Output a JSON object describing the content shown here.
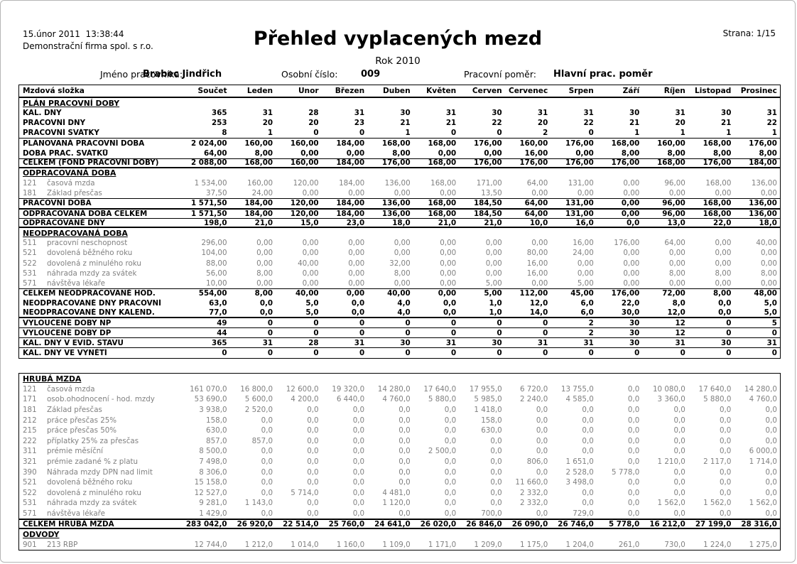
{
  "page": {
    "generated_at": "15.únor 2011  13:38:44",
    "company": "Demonstrační firma spol. s r.o.",
    "title": "Přehled vyplacených mezd",
    "subtitle": "Rok 2010",
    "page_label": "Strana: 1/15"
  },
  "employee": {
    "name_label": "Jméno pracovníka:",
    "name": "Brabec Jindřich",
    "number_label": "Osobní číslo:",
    "number": "009",
    "relation_label": "Pracovní poměr:",
    "relation": "Hlavní prac. poměr"
  },
  "table": {
    "first_col_header": "Mzdová složka",
    "columns": [
      "Součet",
      "Leden",
      "Únor",
      "Březen",
      "Duben",
      "Květen",
      "Červen",
      "Červenec",
      "Srpen",
      "Září",
      "Říjen",
      "Listopad",
      "Prosinec"
    ],
    "boxes": [
      {
        "has_column_header": true,
        "rows": [
          {
            "k": "section",
            "label": "PLÁN PRACOVNÍ DOBY"
          },
          {
            "k": "total",
            "label": "KAL. DNY",
            "v": [
              "365",
              "31",
              "28",
              "31",
              "30",
              "31",
              "30",
              "31",
              "31",
              "30",
              "31",
              "30",
              "31"
            ]
          },
          {
            "k": "total",
            "label": "PRACOVNÍ DNY",
            "v": [
              "253",
              "20",
              "20",
              "23",
              "21",
              "21",
              "22",
              "20",
              "22",
              "21",
              "20",
              "21",
              "22"
            ]
          },
          {
            "k": "total",
            "label": "PRACOVNÍ SVÁTKY",
            "v": [
              "8",
              "1",
              "0",
              "0",
              "1",
              "0",
              "0",
              "2",
              "0",
              "1",
              "1",
              "1",
              "1"
            ]
          },
          {
            "k": "total",
            "label": "PLÁNOVANÁ PRACOVNÍ DOBA",
            "r": "t1",
            "v": [
              "2 024,00",
              "160,00",
              "160,00",
              "184,00",
              "168,00",
              "168,00",
              "176,00",
              "160,00",
              "176,00",
              "168,00",
              "160,00",
              "168,00",
              "176,00"
            ]
          },
          {
            "k": "total",
            "label": "DOBA PRAC. SVÁTKŮ",
            "v": [
              "64,00",
              "8,00",
              "0,00",
              "0,00",
              "8,00",
              "0,00",
              "0,00",
              "16,00",
              "0,00",
              "8,00",
              "8,00",
              "8,00",
              "8,00"
            ]
          },
          {
            "k": "total",
            "label": "CELKEM (FOND PRACOVNÍ DOBY)",
            "r": "t1 b2",
            "v": [
              "2 088,00",
              "168,00",
              "160,00",
              "184,00",
              "176,00",
              "168,00",
              "176,00",
              "176,00",
              "176,00",
              "176,00",
              "168,00",
              "176,00",
              "184,00"
            ]
          },
          {
            "k": "section",
            "label": "ODPRACOVANÁ DOBA"
          },
          {
            "k": "item",
            "code": "121",
            "label": "časová mzda",
            "v": [
              "1 534,00",
              "160,00",
              "120,00",
              "184,00",
              "136,00",
              "168,00",
              "171,00",
              "64,00",
              "131,00",
              "0,00",
              "96,00",
              "168,00",
              "136,00"
            ]
          },
          {
            "k": "item",
            "code": "181",
            "label": "Základ přesčas",
            "v": [
              "37,50",
              "24,00",
              "0,00",
              "0,00",
              "0,00",
              "0,00",
              "13,50",
              "0,00",
              "0,00",
              "0,00",
              "0,00",
              "0,00",
              "0,00"
            ]
          },
          {
            "k": "total",
            "label": "PRACOVNÍ DOBA",
            "r": "t1",
            "v": [
              "1 571,50",
              "184,00",
              "120,00",
              "184,00",
              "136,00",
              "168,00",
              "184,50",
              "64,00",
              "131,00",
              "0,00",
              "96,00",
              "168,00",
              "136,00"
            ]
          },
          {
            "k": "total",
            "label": "ODPRACOVANÁ DOBA CELKEM",
            "r": "t2",
            "v": [
              "1 571,50",
              "184,00",
              "120,00",
              "184,00",
              "136,00",
              "168,00",
              "184,50",
              "64,00",
              "131,00",
              "0,00",
              "96,00",
              "168,00",
              "136,00"
            ]
          },
          {
            "k": "total",
            "label": "ODPRACOVANÉ DNY",
            "r": "t1 b2",
            "v": [
              "198,0",
              "21,0",
              "15,0",
              "23,0",
              "18,0",
              "21,0",
              "21,0",
              "10,0",
              "16,0",
              "0,0",
              "13,0",
              "22,0",
              "18,0"
            ]
          },
          {
            "k": "section",
            "label": "NEODPRACOVANÁ DOBA"
          },
          {
            "k": "item",
            "code": "511",
            "label": "pracovní neschopnost",
            "v": [
              "296,00",
              "0,00",
              "0,00",
              "0,00",
              "0,00",
              "0,00",
              "0,00",
              "0,00",
              "16,00",
              "176,00",
              "64,00",
              "0,00",
              "40,00"
            ]
          },
          {
            "k": "item",
            "code": "521",
            "label": "dovolená běžného roku",
            "v": [
              "104,00",
              "0,00",
              "0,00",
              "0,00",
              "0,00",
              "0,00",
              "0,00",
              "80,00",
              "24,00",
              "0,00",
              "0,00",
              "0,00",
              "0,00"
            ]
          },
          {
            "k": "item",
            "code": "522",
            "label": "dovolená z minulého roku",
            "v": [
              "88,00",
              "0,00",
              "40,00",
              "0,00",
              "32,00",
              "0,00",
              "0,00",
              "16,00",
              "0,00",
              "0,00",
              "0,00",
              "0,00",
              "0,00"
            ]
          },
          {
            "k": "item",
            "code": "531",
            "label": "náhrada mzdy za svátek",
            "v": [
              "56,00",
              "8,00",
              "0,00",
              "0,00",
              "8,00",
              "0,00",
              "0,00",
              "16,00",
              "0,00",
              "0,00",
              "8,00",
              "8,00",
              "8,00"
            ]
          },
          {
            "k": "item",
            "code": "571",
            "label": "návštěva lékaře",
            "v": [
              "10,00",
              "0,00",
              "0,00",
              "0,00",
              "0,00",
              "0,00",
              "5,00",
              "0,00",
              "5,00",
              "0,00",
              "0,00",
              "0,00",
              "0,00"
            ]
          },
          {
            "k": "total",
            "label": "CELKEM NEODPRACOVANÉ HOD.",
            "r": "t1",
            "v": [
              "554,00",
              "8,00",
              "40,00",
              "0,00",
              "40,00",
              "0,00",
              "5,00",
              "112,00",
              "45,00",
              "176,00",
              "72,00",
              "8,00",
              "48,00"
            ]
          },
          {
            "k": "total",
            "label": "NEODPRACOVANÉ DNY PRACOVNÍ",
            "v": [
              "63,0",
              "0,0",
              "5,0",
              "0,0",
              "4,0",
              "0,0",
              "1,0",
              "12,0",
              "6,0",
              "22,0",
              "8,0",
              "0,0",
              "5,0"
            ]
          },
          {
            "k": "total",
            "label": "NEODPRACOVANÉ DNY KALEND.",
            "r": "b2",
            "v": [
              "77,0",
              "0,0",
              "5,0",
              "0,0",
              "4,0",
              "0,0",
              "1,0",
              "14,0",
              "6,0",
              "30,0",
              "12,0",
              "0,0",
              "5,0"
            ]
          },
          {
            "k": "total",
            "label": "VYLOUČENÉ DOBY NP",
            "r": "b1",
            "v": [
              "49",
              "0",
              "0",
              "0",
              "0",
              "0",
              "0",
              "0",
              "2",
              "30",
              "12",
              "0",
              "5"
            ]
          },
          {
            "k": "total",
            "label": "VYLOUČENÉ DOBY DP",
            "r": "b1",
            "v": [
              "44",
              "0",
              "0",
              "0",
              "0",
              "0",
              "0",
              "0",
              "2",
              "30",
              "12",
              "0",
              "0"
            ]
          },
          {
            "k": "total",
            "label": "KAL. DNY V EVID. STAVU",
            "r": "b1",
            "v": [
              "365",
              "31",
              "28",
              "31",
              "30",
              "31",
              "30",
              "31",
              "31",
              "30",
              "31",
              "30",
              "31"
            ]
          },
          {
            "k": "total",
            "label": "KAL. DNY VE VYNĚTÍ",
            "v": [
              "0",
              "0",
              "0",
              "0",
              "0",
              "0",
              "0",
              "0",
              "0",
              "0",
              "0",
              "0",
              "0"
            ]
          }
        ]
      },
      {
        "has_column_header": false,
        "rows": [
          {
            "k": "section",
            "label": "HRUBÁ MZDA"
          },
          {
            "k": "item",
            "code": "121",
            "label": "časová mzda",
            "v": [
              "161 070,0",
              "16 800,0",
              "12 600,0",
              "19 320,0",
              "14 280,0",
              "17 640,0",
              "17 955,0",
              "6 720,0",
              "13 755,0",
              "0,0",
              "10 080,0",
              "17 640,0",
              "14 280,0"
            ]
          },
          {
            "k": "item",
            "code": "171",
            "label": "osob.ohodnocení - hod. mzdy",
            "v": [
              "53 690,0",
              "5 600,0",
              "4 200,0",
              "6 440,0",
              "4 760,0",
              "5 880,0",
              "5 985,0",
              "2 240,0",
              "4 585,0",
              "0,0",
              "3 360,0",
              "5 880,0",
              "4 760,0"
            ]
          },
          {
            "k": "item",
            "code": "181",
            "label": "Základ přesčas",
            "v": [
              "3 938,0",
              "2 520,0",
              "0,0",
              "0,0",
              "0,0",
              "0,0",
              "1 418,0",
              "0,0",
              "0,0",
              "0,0",
              "0,0",
              "0,0",
              "0,0"
            ]
          },
          {
            "k": "item",
            "code": "212",
            "label": "práce přesčas 25%",
            "v": [
              "158,0",
              "0,0",
              "0,0",
              "0,0",
              "0,0",
              "0,0",
              "158,0",
              "0,0",
              "0,0",
              "0,0",
              "0,0",
              "0,0",
              "0,0"
            ]
          },
          {
            "k": "item",
            "code": "215",
            "label": "práce přesčas 50%",
            "v": [
              "630,0",
              "0,0",
              "0,0",
              "0,0",
              "0,0",
              "0,0",
              "630,0",
              "0,0",
              "0,0",
              "0,0",
              "0,0",
              "0,0",
              "0,0"
            ]
          },
          {
            "k": "item",
            "code": "222",
            "label": "příplatky 25% za přesčas",
            "v": [
              "857,0",
              "857,0",
              "0,0",
              "0,0",
              "0,0",
              "0,0",
              "0,0",
              "0,0",
              "0,0",
              "0,0",
              "0,0",
              "0,0",
              "0,0"
            ]
          },
          {
            "k": "item",
            "code": "311",
            "label": "prémie měsíční",
            "v": [
              "8 500,0",
              "0,0",
              "0,0",
              "0,0",
              "0,0",
              "2 500,0",
              "0,0",
              "0,0",
              "0,0",
              "0,0",
              "0,0",
              "0,0",
              "6 000,0"
            ]
          },
          {
            "k": "item",
            "code": "321",
            "label": "prémie zadané % z platu",
            "v": [
              "7 498,0",
              "0,0",
              "0,0",
              "0,0",
              "0,0",
              "0,0",
              "0,0",
              "806,0",
              "1 651,0",
              "0,0",
              "1 210,0",
              "2 117,0",
              "1 714,0"
            ]
          },
          {
            "k": "item",
            "code": "390",
            "label": "Náhrada mzdy DPN nad limit",
            "v": [
              "8 306,0",
              "0,0",
              "0,0",
              "0,0",
              "0,0",
              "0,0",
              "0,0",
              "0,0",
              "2 528,0",
              "5 778,0",
              "0,0",
              "0,0",
              "0,0"
            ]
          },
          {
            "k": "item",
            "code": "521",
            "label": "dovolená běžného roku",
            "v": [
              "15 158,0",
              "0,0",
              "0,0",
              "0,0",
              "0,0",
              "0,0",
              "0,0",
              "11 660,0",
              "3 498,0",
              "0,0",
              "0,0",
              "0,0",
              "0,0"
            ]
          },
          {
            "k": "item",
            "code": "522",
            "label": "dovolená z minulého roku",
            "v": [
              "12 527,0",
              "0,0",
              "5 714,0",
              "0,0",
              "4 481,0",
              "0,0",
              "0,0",
              "2 332,0",
              "0,0",
              "0,0",
              "0,0",
              "0,0",
              "0,0"
            ]
          },
          {
            "k": "item",
            "code": "531",
            "label": "náhrada mzdy za svátek",
            "v": [
              "9 281,0",
              "1 143,0",
              "0,0",
              "0,0",
              "1 120,0",
              "0,0",
              "0,0",
              "2 332,0",
              "0,0",
              "0,0",
              "1 562,0",
              "1 562,0",
              "1 562,0"
            ]
          },
          {
            "k": "item",
            "code": "571",
            "label": "návštěva lékaře",
            "v": [
              "1 429,0",
              "0,0",
              "0,0",
              "0,0",
              "0,0",
              "0,0",
              "700,0",
              "0,0",
              "729,0",
              "0,0",
              "0,0",
              "0,0",
              "0,0"
            ]
          },
          {
            "k": "total",
            "label": "CELKEM HRUBÁ MZDA",
            "r": "t2 b2",
            "v": [
              "283 042,0",
              "26 920,0",
              "22 514,0",
              "25 760,0",
              "24 641,0",
              "26 020,0",
              "26 846,0",
              "26 090,0",
              "26 746,0",
              "5 778,0",
              "16 212,0",
              "27 199,0",
              "28 316,0"
            ]
          },
          {
            "k": "section",
            "label": "ODVODY"
          },
          {
            "k": "item",
            "code": "901",
            "label": "213 RBP",
            "v": [
              "12 744,0",
              "1 212,0",
              "1 014,0",
              "1 160,0",
              "1 109,0",
              "1 171,0",
              "1 209,0",
              "1 175,0",
              "1 204,0",
              "261,0",
              "730,0",
              "1 224,0",
              "1 275,0"
            ]
          }
        ]
      }
    ]
  }
}
